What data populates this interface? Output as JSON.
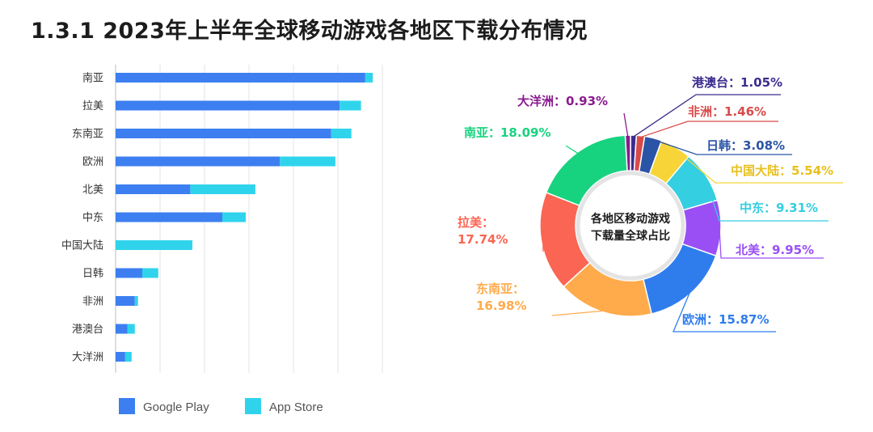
{
  "page": {
    "title": "1.3.1  2023年上半年全球移动游戏各地区下载分布情况"
  },
  "colors": {
    "google_play": "#3d7ff0",
    "app_store": "#2fd4ec",
    "grid": "#e3e3e3",
    "axis": "#bdbdbd"
  },
  "chart_data": [
    {
      "type": "bar",
      "orientation": "horizontal",
      "stacked": true,
      "categories": [
        "南亚",
        "拉美",
        "东南亚",
        "欧洲",
        "北美",
        "中东",
        "中国大陆",
        "日韩",
        "非洲",
        "港澳台",
        "大洋洲"
      ],
      "series": [
        {
          "name": "Google Play",
          "values": [
            117,
            105,
            101,
            77,
            35,
            50,
            0,
            12.5,
            9,
            5.5,
            4.5
          ]
        },
        {
          "name": "App Store",
          "values": [
            3.5,
            10,
            9.5,
            26,
            30.5,
            11,
            36,
            7.5,
            1.5,
            3.5,
            3
          ]
        }
      ],
      "xlim": [
        0,
        125
      ],
      "grid": true,
      "legend": "bottom",
      "legend_labels": [
        "Google Play",
        "App Store"
      ]
    },
    {
      "type": "pie",
      "donut": true,
      "center_label": [
        "各地区移动游戏",
        "下载量全球占比"
      ],
      "slices": [
        {
          "label": "港澳台",
          "value": 1.05,
          "text": "1.05%",
          "color": "#3a2c8f"
        },
        {
          "label": "非洲",
          "value": 1.46,
          "text": "1.46%",
          "color": "#d84a4a"
        },
        {
          "label": "日韩",
          "value": 3.08,
          "text": "3.08%",
          "color": "#2a54a6"
        },
        {
          "label": "中国大陆",
          "value": 5.54,
          "text": "5.54%",
          "color": "#f7d538"
        },
        {
          "label": "中东",
          "value": 9.31,
          "text": "9.31%",
          "color": "#34cfe0"
        },
        {
          "label": "北美",
          "value": 9.95,
          "text": "9.95%",
          "color": "#9a4ff5"
        },
        {
          "label": "欧洲",
          "value": 15.87,
          "text": "15.87%",
          "color": "#2f7ded"
        },
        {
          "label": "东南亚",
          "value": 16.98,
          "text": "16.98%",
          "color": "#ffab4c"
        },
        {
          "label": "拉美",
          "value": 17.74,
          "text": "17.74%",
          "color": "#fb6553"
        },
        {
          "label": "南亚",
          "value": 18.09,
          "text": "18.09%",
          "color": "#17d37f"
        },
        {
          "label": "大洋洲",
          "value": 0.93,
          "text": "0.93%",
          "color": "#8a1b8f"
        }
      ]
    }
  ]
}
